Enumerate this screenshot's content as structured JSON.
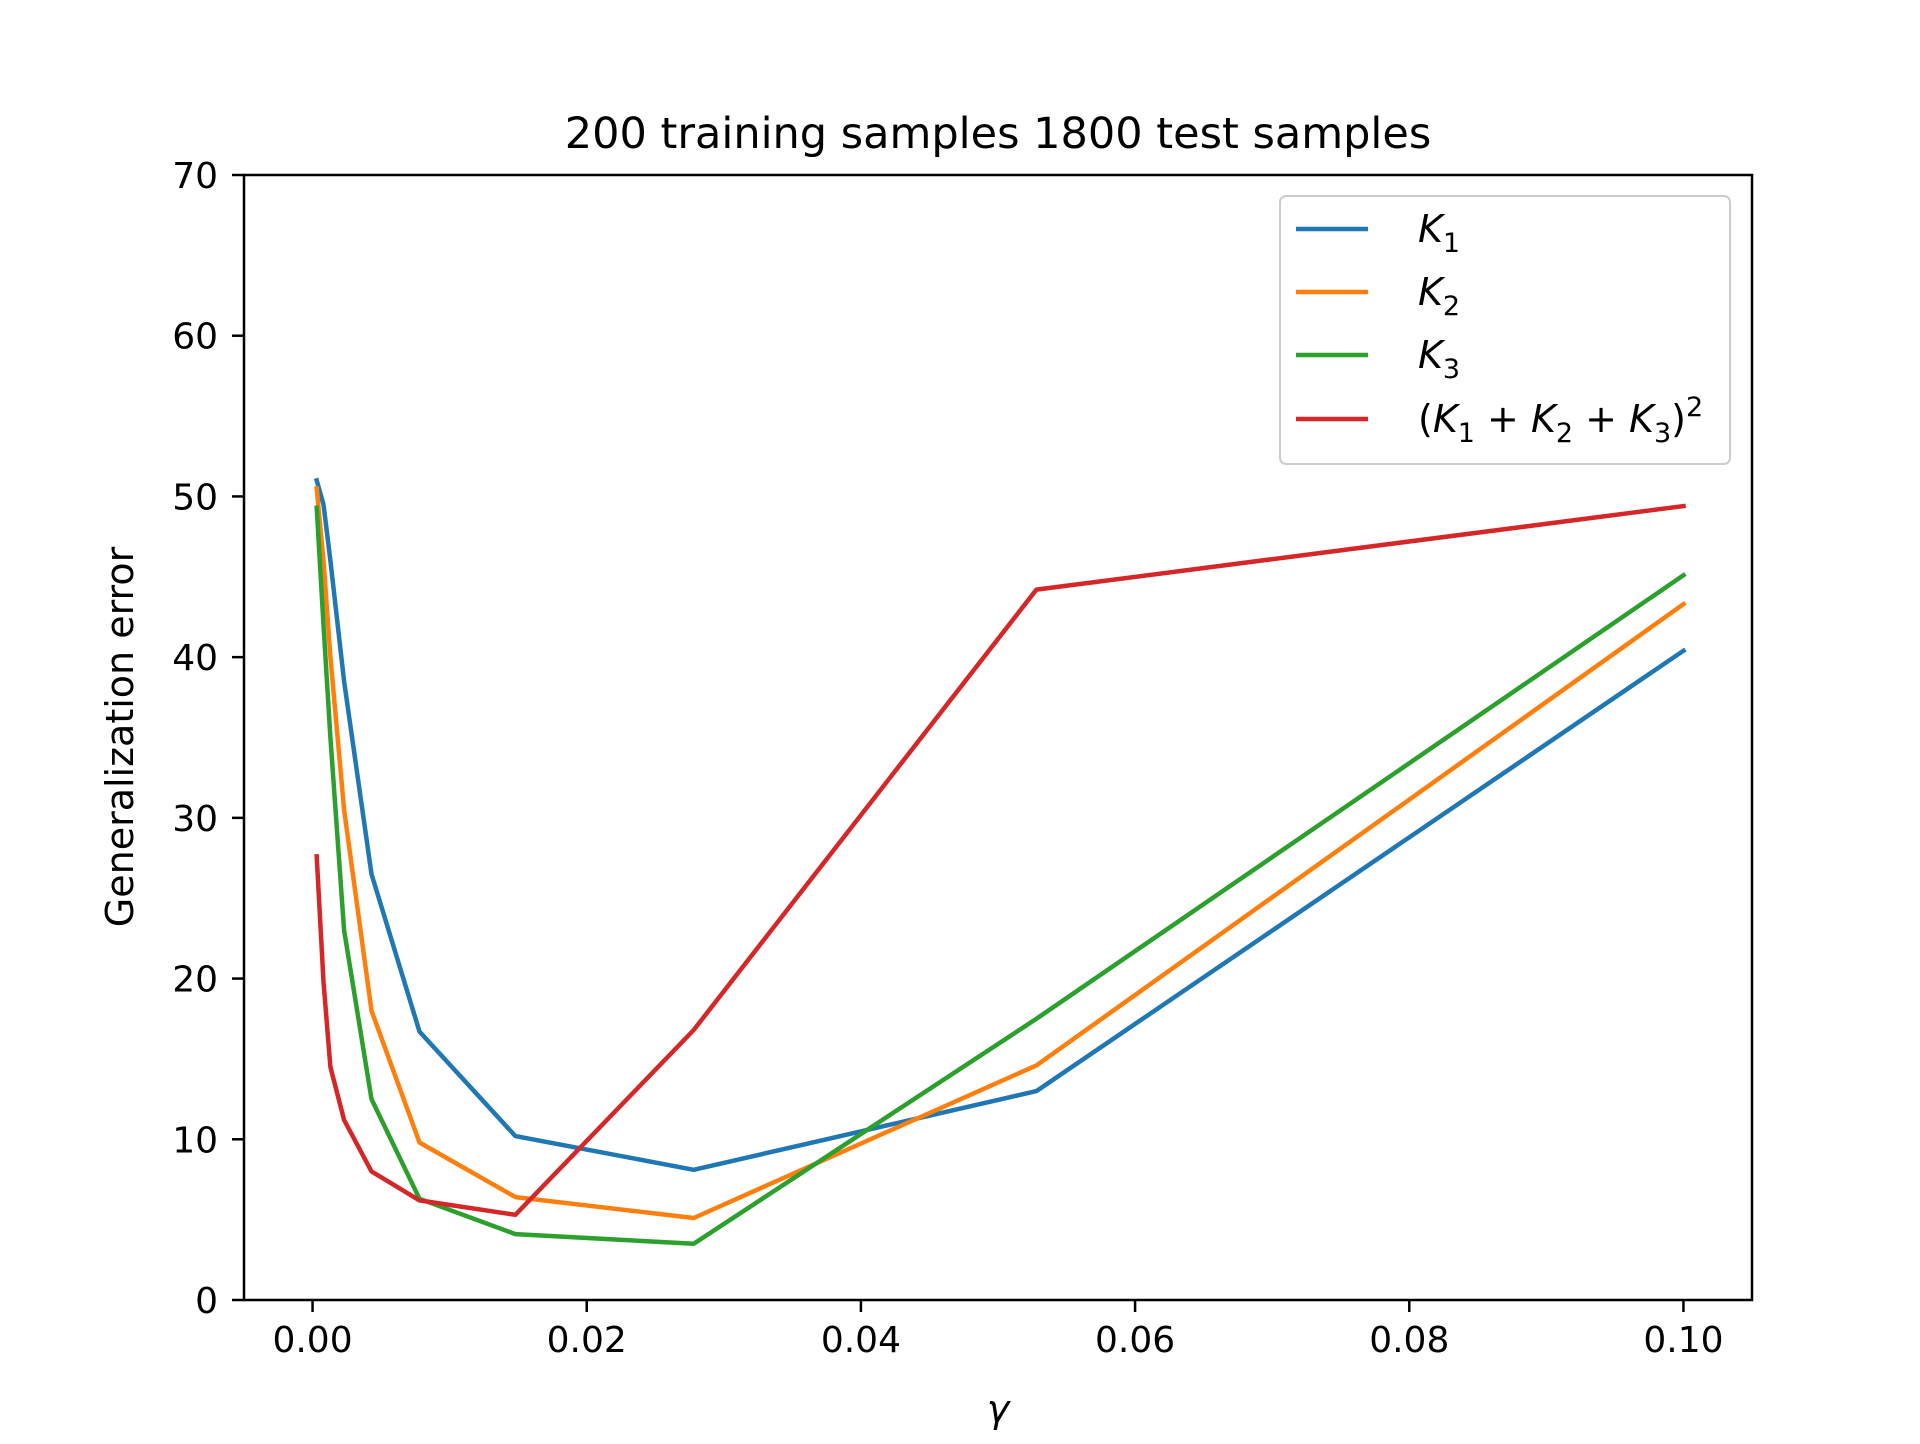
{
  "chart_data": {
    "type": "line",
    "title": "200 training samples 1800 test samples",
    "xlabel": "γ",
    "ylabel": "Generalization error",
    "xlim": [
      -0.005,
      0.105
    ],
    "ylim": [
      0,
      70
    ],
    "xticks": [
      0.0,
      0.02,
      0.04,
      0.06,
      0.08,
      0.1
    ],
    "xtick_labels": [
      "0.00",
      "0.02",
      "0.04",
      "0.06",
      "0.08",
      "0.10"
    ],
    "yticks": [
      0,
      10,
      20,
      30,
      40,
      50,
      60,
      70
    ],
    "ytick_labels": [
      "0",
      "10",
      "20",
      "30",
      "40",
      "50",
      "60",
      "70"
    ],
    "grid": false,
    "legend_position": "upper right",
    "series": [
      {
        "name": "K1",
        "color": "#1f77b4",
        "x": [
          0.0003,
          0.0008,
          0.0013,
          0.0023,
          0.0043,
          0.0078,
          0.0148,
          0.0278,
          0.0528,
          0.1
        ],
        "y": [
          51.0,
          49.5,
          46.0,
          38.5,
          26.5,
          16.7,
          10.2,
          8.1,
          13.0,
          40.4
        ]
      },
      {
        "name": "K2",
        "color": "#ff7f0e",
        "x": [
          0.0003,
          0.0008,
          0.0013,
          0.0023,
          0.0043,
          0.0078,
          0.0148,
          0.0278,
          0.0528,
          0.1
        ],
        "y": [
          50.5,
          46.0,
          40.0,
          30.5,
          18.0,
          9.8,
          6.4,
          5.1,
          14.6,
          43.3
        ]
      },
      {
        "name": "K3",
        "color": "#2ca02c",
        "x": [
          0.0003,
          0.0008,
          0.0013,
          0.0023,
          0.0043,
          0.0078,
          0.0148,
          0.0278,
          0.0528,
          0.1
        ],
        "y": [
          49.3,
          42.0,
          35.0,
          23.0,
          12.5,
          6.3,
          4.1,
          3.5,
          17.5,
          45.1
        ]
      },
      {
        "name": "(K1 + K2 + K3)^2",
        "color": "#d62728",
        "x": [
          0.0003,
          0.0008,
          0.0013,
          0.0023,
          0.0043,
          0.0078,
          0.0148,
          0.0278,
          0.0528,
          0.1
        ],
        "y": [
          27.6,
          19.8,
          14.5,
          11.2,
          8.0,
          6.2,
          5.3,
          16.8,
          44.2,
          49.4
        ]
      }
    ]
  }
}
